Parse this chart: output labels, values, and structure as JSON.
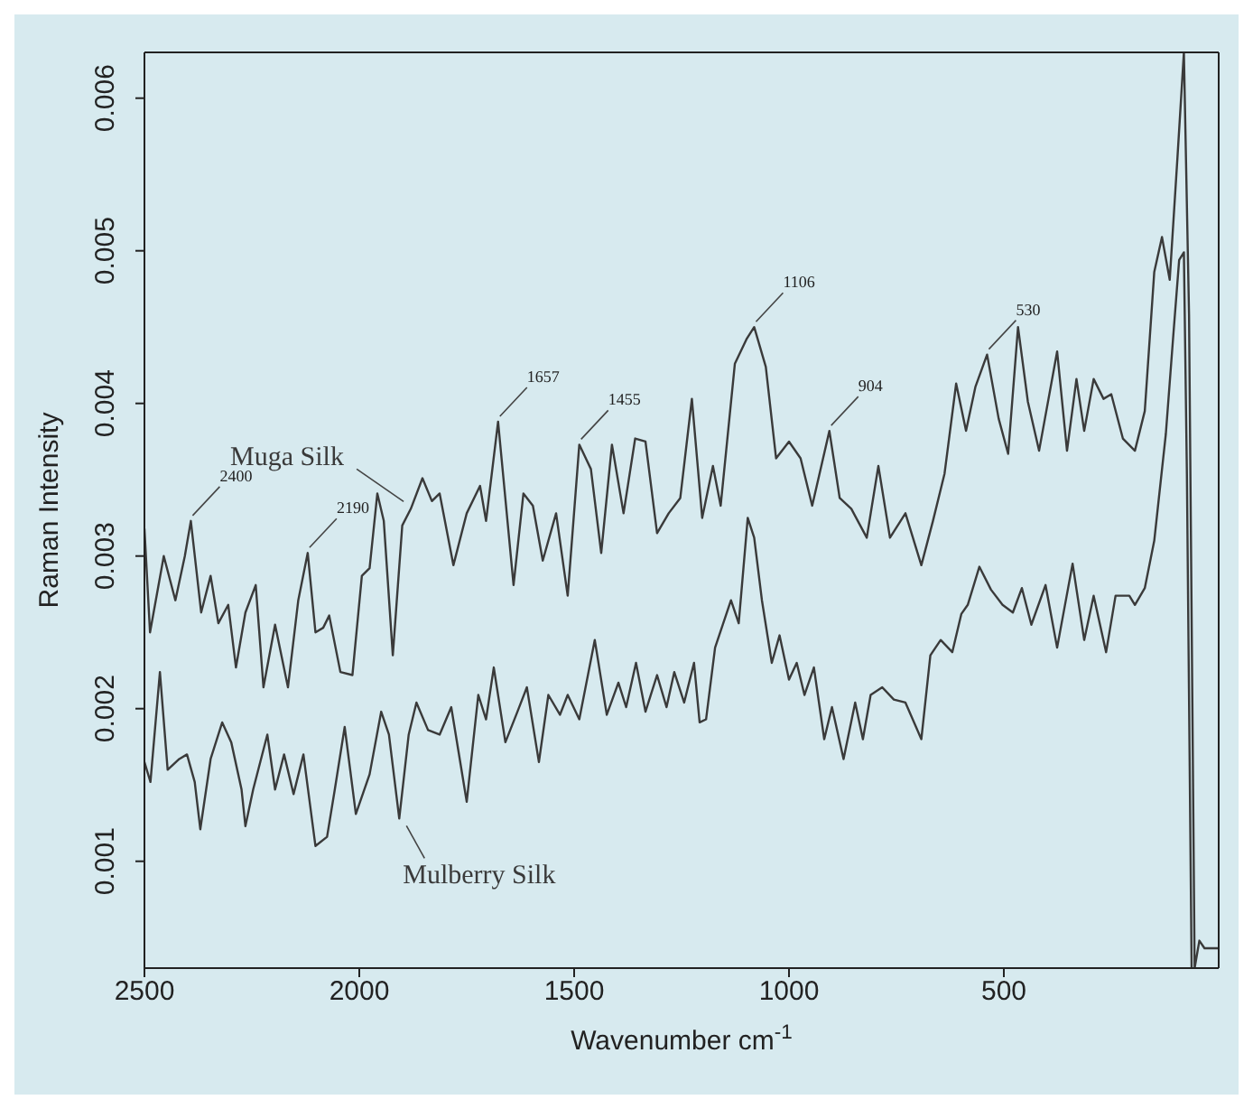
{
  "chart_data": {
    "type": "line",
    "xlabel": "Wavenumber cm$^{-1}$",
    "ylabel": "Raman Intensity",
    "xlim": [
      2500,
      0
    ],
    "ylim": [
      0.0003,
      0.0063
    ],
    "xticks": [
      2500,
      2000,
      1500,
      1000,
      500
    ],
    "yticks": [
      0.001,
      0.002,
      0.003,
      0.004,
      0.005,
      0.006
    ],
    "marker": "none",
    "line_style": "solid",
    "series": [
      {
        "name": "Muga Silk",
        "color": "#3a3a3a",
        "x": [
          2500,
          2487,
          2455,
          2428,
          2406,
          2392,
          2368,
          2346,
          2328,
          2305,
          2287,
          2265,
          2241,
          2223,
          2196,
          2166,
          2142,
          2120,
          2102,
          2084,
          2070,
          2044,
          2016,
          1994,
          1976,
          1958,
          1943,
          1922,
          1900,
          1880,
          1853,
          1831,
          1813,
          1781,
          1750,
          1719,
          1705,
          1677,
          1641,
          1618,
          1596,
          1573,
          1542,
          1515,
          1488,
          1461,
          1437,
          1412,
          1385,
          1358,
          1334,
          1307,
          1280,
          1253,
          1226,
          1202,
          1177,
          1159,
          1126,
          1099,
          1081,
          1054,
          1030,
          1000,
          973,
          946,
          906,
          882,
          855,
          819,
          792,
          765,
          729,
          692,
          665,
          638,
          611,
          588,
          566,
          539,
          512,
          490,
          467,
          444,
          418,
          376,
          353,
          331,
          313,
          291,
          268,
          250,
          223,
          195,
          172,
          150,
          132,
          114,
          96,
          81,
          69,
          56,
          45,
          33,
          2
        ],
        "values": [
          0.00318,
          0.0025,
          0.003,
          0.00271,
          0.003,
          0.00323,
          0.00263,
          0.00287,
          0.00256,
          0.00268,
          0.00227,
          0.00263,
          0.00281,
          0.00214,
          0.00255,
          0.00214,
          0.00271,
          0.00302,
          0.0025,
          0.00253,
          0.00261,
          0.00224,
          0.00222,
          0.00287,
          0.00292,
          0.00341,
          0.00323,
          0.00235,
          0.0032,
          0.00331,
          0.00351,
          0.00336,
          0.00341,
          0.00294,
          0.00328,
          0.00346,
          0.00323,
          0.00388,
          0.00281,
          0.00341,
          0.00333,
          0.00297,
          0.00328,
          0.00274,
          0.00373,
          0.00357,
          0.00302,
          0.00373,
          0.00328,
          0.00377,
          0.00375,
          0.00315,
          0.00328,
          0.00338,
          0.00403,
          0.00325,
          0.00359,
          0.00333,
          0.00426,
          0.00442,
          0.0045,
          0.00424,
          0.00364,
          0.00375,
          0.00364,
          0.00333,
          0.00382,
          0.00338,
          0.00331,
          0.00312,
          0.00359,
          0.00312,
          0.00328,
          0.00294,
          0.00323,
          0.00354,
          0.00413,
          0.00382,
          0.00411,
          0.00432,
          0.0039,
          0.00367,
          0.0045,
          0.00401,
          0.00369,
          0.00434,
          0.00369,
          0.00416,
          0.00382,
          0.00416,
          0.00403,
          0.00406,
          0.00377,
          0.00369,
          0.00395,
          0.00486,
          0.00509,
          0.00481,
          0.00561,
          0.0063,
          0.00458,
          0.0003,
          0.00048,
          0.00043,
          0.00043
        ]
      },
      {
        "name": "Mulberry Silk",
        "color": "#3a3a3a",
        "x": [
          2500,
          2486,
          2464,
          2446,
          2419,
          2401,
          2383,
          2370,
          2346,
          2319,
          2298,
          2274,
          2265,
          2247,
          2214,
          2196,
          2175,
          2153,
          2130,
          2102,
          2075,
          2057,
          2034,
          2008,
          1976,
          1949,
          1931,
          1907,
          1885,
          1867,
          1840,
          1813,
          1786,
          1750,
          1723,
          1705,
          1687,
          1660,
          1632,
          1610,
          1582,
          1560,
          1533,
          1515,
          1488,
          1452,
          1424,
          1397,
          1379,
          1356,
          1334,
          1307,
          1285,
          1267,
          1244,
          1221,
          1208,
          1193,
          1172,
          1135,
          1117,
          1096,
          1081,
          1063,
          1040,
          1022,
          1000,
          982,
          964,
          942,
          918,
          900,
          873,
          846,
          828,
          810,
          783,
          756,
          729,
          692,
          671,
          647,
          620,
          599,
          584,
          557,
          530,
          503,
          479,
          458,
          436,
          403,
          376,
          340,
          313,
          291,
          262,
          240,
          208,
          195,
          172,
          150,
          123,
          105,
          92,
          81,
          74,
          63
        ],
        "values": [
          0.00165,
          0.00152,
          0.00224,
          0.0016,
          0.00167,
          0.0017,
          0.00152,
          0.00121,
          0.00167,
          0.00191,
          0.00178,
          0.00147,
          0.00123,
          0.00147,
          0.00183,
          0.00147,
          0.0017,
          0.00144,
          0.0017,
          0.0011,
          0.00116,
          0.00147,
          0.00188,
          0.00131,
          0.00157,
          0.00198,
          0.00183,
          0.00128,
          0.00183,
          0.00204,
          0.00186,
          0.00183,
          0.00201,
          0.00139,
          0.00209,
          0.00193,
          0.00227,
          0.00178,
          0.00198,
          0.00214,
          0.00165,
          0.00209,
          0.00196,
          0.00209,
          0.00193,
          0.00245,
          0.00196,
          0.00217,
          0.00201,
          0.0023,
          0.00198,
          0.00222,
          0.00201,
          0.00224,
          0.00204,
          0.0023,
          0.00191,
          0.00193,
          0.0024,
          0.00271,
          0.00256,
          0.00325,
          0.00312,
          0.00271,
          0.0023,
          0.00248,
          0.00219,
          0.0023,
          0.00209,
          0.00227,
          0.0018,
          0.00201,
          0.00167,
          0.00204,
          0.0018,
          0.00209,
          0.00214,
          0.00206,
          0.00204,
          0.0018,
          0.00235,
          0.00245,
          0.00237,
          0.00262,
          0.00268,
          0.00293,
          0.00278,
          0.00268,
          0.00263,
          0.00279,
          0.00255,
          0.00281,
          0.0024,
          0.00295,
          0.00245,
          0.00274,
          0.00237,
          0.00274,
          0.00274,
          0.00268,
          0.00279,
          0.0031,
          0.0038,
          0.00447,
          0.00494,
          0.00499,
          0.00354,
          0.0003
        ]
      }
    ],
    "annotations": [
      {
        "text": "2400",
        "x": 2392,
        "y": 0.00323
      },
      {
        "text": "2190",
        "x": 2120,
        "y": 0.00302
      },
      {
        "text": "1657",
        "x": 1677,
        "y": 0.00388
      },
      {
        "text": "1455",
        "x": 1488,
        "y": 0.00373
      },
      {
        "text": "1106",
        "x": 1081,
        "y": 0.0045
      },
      {
        "text": "904",
        "x": 906,
        "y": 0.00382
      },
      {
        "text": "530",
        "x": 539,
        "y": 0.00432
      }
    ]
  }
}
